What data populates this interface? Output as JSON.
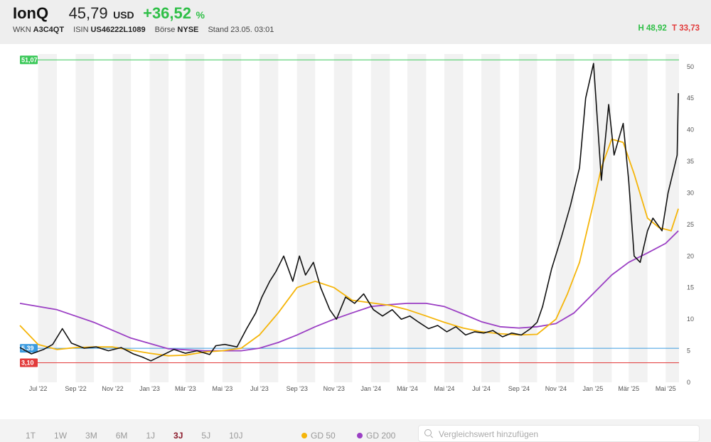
{
  "header": {
    "name": "IonQ",
    "price": "45,79",
    "currency": "USD",
    "change": "+36,52",
    "change_unit": "%",
    "wkn_label": "WKN",
    "wkn": "A3C4QT",
    "isin_label": "ISIN",
    "isin": "US46222L1089",
    "exchange_label": "Börse",
    "exchange": "NYSE",
    "stand": "Stand 23.05. 03:01",
    "high": "H 48,92",
    "low": "T 33,73"
  },
  "colors": {
    "price": "#111111",
    "gd50": "#f5b50a",
    "gd200": "#9b3fc4",
    "resistance": "#3cc95a",
    "support_blue": "#3b9be0",
    "support_red": "#e23b3b",
    "accent": "#8b1a2b"
  },
  "chart_data": {
    "type": "line",
    "x_ticks": [
      "Jul '22",
      "Sep '22",
      "Nov '22",
      "Jan '23",
      "Mär '23",
      "Mai '23",
      "Jul '23",
      "Sep '23",
      "Nov '23",
      "Jan '24",
      "Mär '24",
      "Mai '24",
      "Jul '24",
      "Sep '24",
      "Nov '24",
      "Jan '25",
      "Mär '25",
      "Mai '25"
    ],
    "y_ticks": [
      0,
      5,
      10,
      15,
      20,
      25,
      30,
      35,
      40,
      45,
      50
    ],
    "ylim": [
      0,
      52
    ],
    "grid": "alternating monthly bands",
    "reference_lines": [
      {
        "label": "51,07",
        "value": 51.07,
        "color": "#3cc95a"
      },
      {
        "label": "5,39",
        "value": 5.39,
        "color": "#3b9be0"
      },
      {
        "label": "3,10",
        "value": 3.1,
        "color": "#e23b3b"
      }
    ],
    "series": [
      {
        "name": "IonQ",
        "color": "#111111",
        "x": [
          "2022-06-01",
          "2022-06-20",
          "2022-07-10",
          "2022-07-25",
          "2022-08-10",
          "2022-08-25",
          "2022-09-15",
          "2022-10-05",
          "2022-10-25",
          "2022-11-15",
          "2022-12-05",
          "2022-12-20",
          "2023-01-03",
          "2023-01-20",
          "2023-02-10",
          "2023-03-01",
          "2023-03-20",
          "2023-04-10",
          "2023-04-20",
          "2023-05-05",
          "2023-05-25",
          "2023-06-10",
          "2023-06-25",
          "2023-07-05",
          "2023-07-18",
          "2023-07-28",
          "2023-08-10",
          "2023-08-25",
          "2023-09-05",
          "2023-09-15",
          "2023-09-28",
          "2023-10-10",
          "2023-10-25",
          "2023-11-05",
          "2023-11-20",
          "2023-12-05",
          "2023-12-20",
          "2024-01-05",
          "2024-01-20",
          "2024-02-05",
          "2024-02-20",
          "2024-03-05",
          "2024-03-20",
          "2024-04-05",
          "2024-04-20",
          "2024-05-05",
          "2024-05-20",
          "2024-06-05",
          "2024-06-20",
          "2024-07-05",
          "2024-07-20",
          "2024-08-05",
          "2024-08-20",
          "2024-09-05",
          "2024-09-20",
          "2024-10-01",
          "2024-10-10",
          "2024-10-25",
          "2024-11-10",
          "2024-11-25",
          "2024-12-10",
          "2024-12-20",
          "2025-01-02",
          "2025-01-08",
          "2025-01-15",
          "2025-01-27",
          "2025-02-05",
          "2025-02-20",
          "2025-03-01",
          "2025-03-10",
          "2025-03-20",
          "2025-04-01",
          "2025-04-10",
          "2025-04-25",
          "2025-05-05",
          "2025-05-15",
          "2025-05-20",
          "2025-05-22"
        ],
        "values": [
          5.5,
          4.5,
          5.2,
          6.0,
          8.5,
          6.2,
          5.4,
          5.6,
          5.0,
          5.5,
          4.5,
          4.0,
          3.4,
          4.2,
          5.2,
          4.6,
          5.0,
          4.4,
          5.8,
          6.0,
          5.6,
          8.5,
          11.0,
          13.5,
          16.0,
          17.5,
          20.0,
          16.0,
          20.0,
          17.0,
          19.0,
          15.0,
          11.5,
          10.0,
          13.5,
          12.5,
          14.0,
          11.5,
          10.5,
          11.5,
          10.0,
          10.5,
          9.5,
          8.5,
          9.0,
          8.0,
          8.8,
          7.5,
          8.0,
          7.8,
          8.2,
          7.2,
          7.8,
          7.5,
          8.5,
          9.5,
          12.0,
          18.0,
          23.0,
          28.0,
          34.0,
          45.0,
          50.5,
          42.0,
          32.0,
          44.0,
          36.0,
          41.0,
          32.0,
          20.0,
          19.0,
          24.0,
          26.0,
          24.0,
          30.0,
          34.0,
          36.0,
          45.8
        ]
      },
      {
        "name": "GD 50",
        "color": "#f5b50a",
        "x": [
          "2022-06-01",
          "2022-07-01",
          "2022-08-01",
          "2022-09-01",
          "2022-10-01",
          "2022-11-01",
          "2022-12-01",
          "2023-01-01",
          "2023-02-01",
          "2023-03-01",
          "2023-04-01",
          "2023-05-01",
          "2023-06-01",
          "2023-07-01",
          "2023-08-01",
          "2023-09-01",
          "2023-10-01",
          "2023-11-01",
          "2023-12-01",
          "2024-01-01",
          "2024-02-01",
          "2024-03-01",
          "2024-04-01",
          "2024-05-01",
          "2024-06-01",
          "2024-07-01",
          "2024-08-01",
          "2024-09-01",
          "2024-10-01",
          "2024-11-01",
          "2024-11-20",
          "2024-12-10",
          "2025-01-01",
          "2025-01-15",
          "2025-02-01",
          "2025-02-20",
          "2025-03-10",
          "2025-04-01",
          "2025-04-20",
          "2025-05-10",
          "2025-05-22"
        ],
        "values": [
          9.0,
          6.0,
          5.2,
          5.5,
          5.6,
          5.6,
          5.1,
          4.6,
          4.2,
          4.3,
          4.8,
          5.0,
          5.4,
          7.5,
          11.0,
          15.0,
          16.0,
          15.0,
          13.0,
          12.6,
          12.2,
          11.5,
          10.5,
          9.5,
          8.6,
          8.0,
          7.7,
          7.5,
          7.6,
          10.0,
          14.0,
          19.0,
          28.0,
          34.0,
          38.5,
          38.0,
          33.0,
          26.0,
          24.5,
          24.0,
          27.5
        ]
      },
      {
        "name": "GD 200",
        "color": "#9b3fc4",
        "x": [
          "2022-06-01",
          "2022-08-01",
          "2022-10-01",
          "2022-12-01",
          "2023-02-01",
          "2023-04-01",
          "2023-06-01",
          "2023-07-01",
          "2023-08-01",
          "2023-09-01",
          "2023-10-01",
          "2023-11-01",
          "2023-12-01",
          "2024-01-01",
          "2024-02-01",
          "2024-03-01",
          "2024-04-01",
          "2024-05-01",
          "2024-06-01",
          "2024-07-01",
          "2024-08-01",
          "2024-09-01",
          "2024-10-01",
          "2024-11-01",
          "2024-12-01",
          "2025-01-01",
          "2025-02-01",
          "2025-03-01",
          "2025-04-01",
          "2025-05-01",
          "2025-05-22"
        ],
        "values": [
          12.5,
          11.5,
          9.5,
          7.0,
          5.3,
          5.0,
          5.0,
          5.4,
          6.3,
          7.5,
          8.8,
          10.0,
          11.0,
          12.0,
          12.3,
          12.5,
          12.5,
          12.0,
          10.8,
          9.6,
          8.8,
          8.6,
          8.8,
          9.3,
          11.0,
          14.0,
          17.0,
          19.0,
          20.5,
          22.0,
          24.0
        ]
      }
    ]
  },
  "footer": {
    "ranges": [
      {
        "label": "1T",
        "active": false
      },
      {
        "label": "1W",
        "active": false
      },
      {
        "label": "3M",
        "active": false
      },
      {
        "label": "6M",
        "active": false
      },
      {
        "label": "1J",
        "active": false
      },
      {
        "label": "3J",
        "active": true
      },
      {
        "label": "5J",
        "active": false
      },
      {
        "label": "10J",
        "active": false
      }
    ],
    "legend": {
      "gd50": "GD 50",
      "gd200": "GD 200"
    },
    "search_placeholder": "Vergleichswert hinzufügen"
  }
}
